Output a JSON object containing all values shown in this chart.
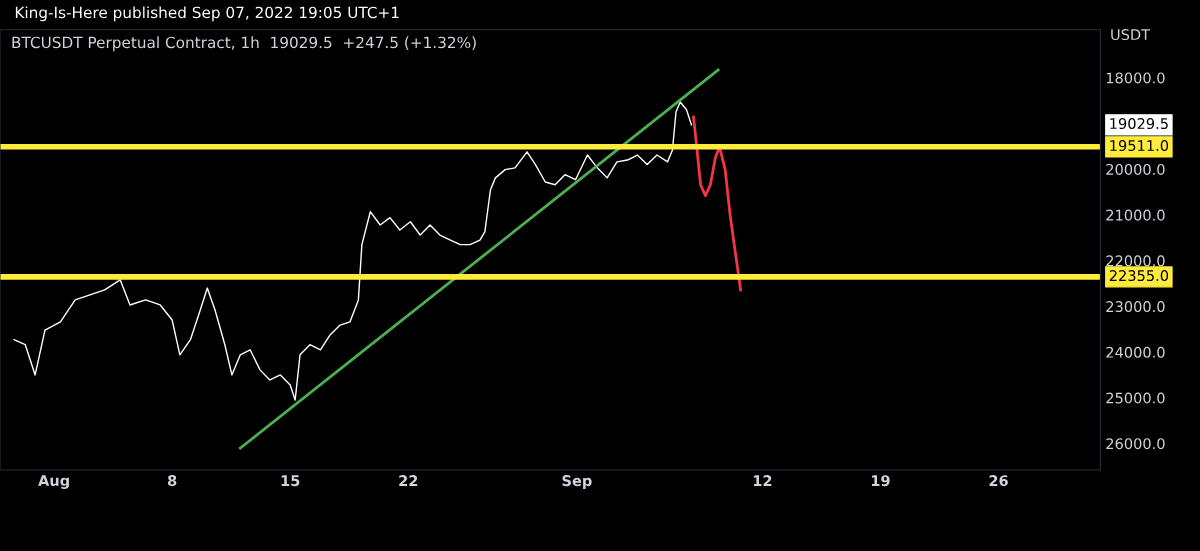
{
  "chart_data": {
    "type": "line",
    "title": "BTCUSDT Perpetual Contract, 1h  19029.5  +247.5 (+1.32%)",
    "ylabel": "USDT",
    "annotations": [
      "King-Is-Here published Sep 07, 2022 19:05 UTC+1",
      "19029.5"
    ],
    "xlim": [
      "2022-07-28T19:00",
      "2022-10-02T01:00"
    ],
    "xticks": [
      {
        "value": "2022-08-01",
        "label": "Aug"
      },
      {
        "value": "2022-08-08",
        "label": "8"
      },
      {
        "value": "2022-08-15",
        "label": "15"
      },
      {
        "value": "2022-08-22",
        "label": "22"
      },
      {
        "value": "2022-09-01",
        "label": "Sep"
      },
      {
        "value": "2022-09-12",
        "label": "12"
      },
      {
        "value": "2022-09-19",
        "label": "19"
      },
      {
        "value": "2022-09-26",
        "label": "26"
      }
    ],
    "ylim": [
      26580,
      16950
    ],
    "yticks": [
      {
        "value": 18000,
        "label": "18000.0"
      },
      {
        "value": 20000,
        "label": "20000.0"
      },
      {
        "value": 21000,
        "label": "21000.0"
      },
      {
        "value": 22000,
        "label": "22000.0"
      },
      {
        "value": 23000,
        "label": "23000.0"
      },
      {
        "value": 24000,
        "label": "24000.0"
      },
      {
        "value": 25000,
        "label": "25000.0"
      },
      {
        "value": 26000,
        "label": "26000.0"
      }
    ],
    "grid": false,
    "legend": false,
    "line_style": "solid",
    "marker": "none",
    "ref_lines": [
      {
        "axis": "y",
        "value": 19511,
        "label": "19511.0",
        "color": "#ffeb3b"
      },
      {
        "axis": "y",
        "value": 22355,
        "label": "22355.0",
        "color": "#ffeb3b"
      }
    ],
    "series": [
      {
        "color": "#ffffff",
        "x": [
          "2022-07-29T15:00",
          "2022-07-30T07:00",
          "2022-07-30T21:00",
          "2022-07-31T11:00",
          "2022-08-01T09:00",
          "2022-08-02T06:00",
          "2022-08-03T03:00",
          "2022-08-04T00:00",
          "2022-08-04T22:00",
          "2022-08-05T12:00",
          "2022-08-06T10:00",
          "2022-08-07T07:00",
          "2022-08-08T00:00",
          "2022-08-08T11:00",
          "2022-08-09T02:00",
          "2022-08-09T16:00",
          "2022-08-10T02:00",
          "2022-08-10T13:00",
          "2022-08-11T03:00",
          "2022-08-11T13:00",
          "2022-08-12T01:00",
          "2022-08-12T15:00",
          "2022-08-13T05:00",
          "2022-08-13T19:00",
          "2022-08-14T10:00",
          "2022-08-15T00:00",
          "2022-08-15T07:00",
          "2022-08-15T14:00",
          "2022-08-16T04:00",
          "2022-08-16T19:00",
          "2022-08-17T09:00",
          "2022-08-17T23:00",
          "2022-08-18T13:00",
          "2022-08-19T01:00",
          "2022-08-19T06:00",
          "2022-08-19T18:00",
          "2022-08-20T08:00",
          "2022-08-20T22:00",
          "2022-08-21T12:00",
          "2022-08-22T03:00",
          "2022-08-22T17:00",
          "2022-08-23T07:00",
          "2022-08-23T21:00",
          "2022-08-24T12:00",
          "2022-08-25T02:00",
          "2022-08-25T16:00",
          "2022-08-26T06:00",
          "2022-08-26T13:00",
          "2022-08-26T21:00",
          "2022-08-27T04:00",
          "2022-08-27T18:00",
          "2022-08-28T08:00",
          "2022-08-29T01:00",
          "2022-08-29T13:00",
          "2022-08-30T03:00",
          "2022-08-30T17:00",
          "2022-08-31T07:00",
          "2022-08-31T22:00",
          "2022-09-01T15:00",
          "2022-09-02T05:00",
          "2022-09-02T19:00",
          "2022-09-03T09:00",
          "2022-09-04T00:00",
          "2022-09-04T14:00",
          "2022-09-05T04:00",
          "2022-09-05T18:00",
          "2022-09-06T09:00",
          "2022-09-06T16:00",
          "2022-09-06T21:00",
          "2022-09-07T03:00",
          "2022-09-07T12:00",
          "2022-09-07T19:00"
        ],
        "values": [
          23730,
          23840,
          24500,
          23520,
          23340,
          22860,
          22750,
          22640,
          22420,
          22970,
          22860,
          22970,
          23300,
          24060,
          23730,
          23080,
          22600,
          23080,
          23840,
          24500,
          24060,
          23950,
          24390,
          24610,
          24500,
          24720,
          25050,
          24060,
          23840,
          23950,
          23620,
          23410,
          23340,
          22860,
          21650,
          20930,
          21220,
          21060,
          21330,
          21150,
          21440,
          21220,
          21440,
          21550,
          21650,
          21650,
          21550,
          21370,
          20450,
          20190,
          20010,
          19970,
          19620,
          19900,
          20280,
          20340,
          20120,
          20230,
          19690,
          19970,
          20190,
          19840,
          19800,
          19690,
          19900,
          19690,
          19840,
          19580,
          18750,
          18530,
          18700,
          19030
        ]
      },
      {
        "color": "#4caf50",
        "x": [
          "2022-08-12T01:00",
          "2022-09-09T09:00"
        ],
        "values": [
          26100,
          17830
        ]
      },
      {
        "color": "#f23645",
        "x": [
          "2022-09-07T22:00",
          "2022-09-08T03:00",
          "2022-09-08T08:00",
          "2022-09-08T15:00",
          "2022-09-08T22:00",
          "2022-09-09T05:00",
          "2022-09-09T11:00",
          "2022-09-09T19:00",
          "2022-09-10T02:00",
          "2022-09-10T09:00",
          "2022-09-10T17:00"
        ],
        "values": [
          18860,
          19580,
          20340,
          20580,
          20340,
          19750,
          19510,
          20010,
          21000,
          21770,
          22640
        ]
      }
    ]
  }
}
